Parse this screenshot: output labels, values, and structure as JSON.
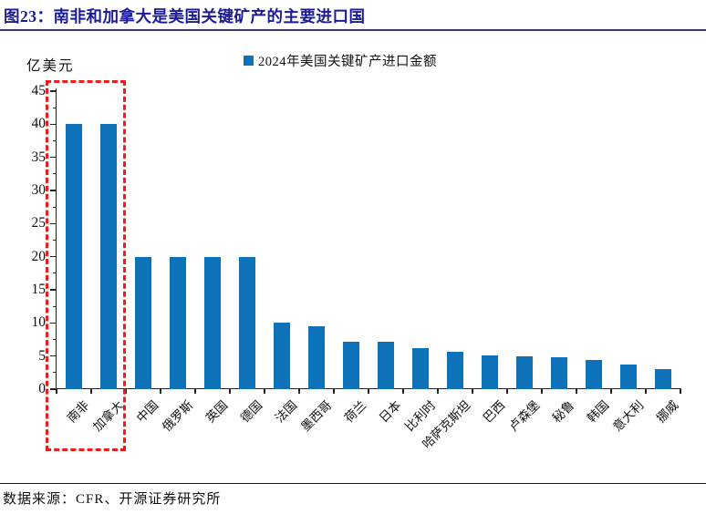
{
  "header": {
    "title": "图23：南非和加拿大是美国关键矿产的主要进口国",
    "title_color": "#1b1b96"
  },
  "chart_data": {
    "type": "bar",
    "legend": "2024年美国关键矿产进口金额",
    "ylabel": "亿美元",
    "categories": [
      "南非",
      "加拿大",
      "中国",
      "俄罗斯",
      "英国",
      "德国",
      "法国",
      "墨西哥",
      "荷兰",
      "日本",
      "比利时",
      "哈萨克斯坦",
      "巴西",
      "卢森堡",
      "秘鲁",
      "韩国",
      "意大利",
      "挪威"
    ],
    "values": [
      40,
      40,
      20,
      20,
      20,
      20,
      10,
      9.5,
      7.2,
      7.1,
      6.2,
      5.6,
      5.1,
      5.0,
      4.8,
      4.4,
      3.7,
      3.0
    ],
    "ylim": [
      0,
      45
    ],
    "yticks": [
      0,
      5,
      10,
      15,
      20,
      25,
      30,
      35,
      40,
      45
    ],
    "grid": false,
    "legend_position": "top-center",
    "colors": {
      "bar": "#0e72b9",
      "highlight_box": "#ee1c1c"
    },
    "annotation": {
      "shape": "dashed-box",
      "highlighted_categories": [
        "南非",
        "加拿大"
      ]
    }
  },
  "footer": {
    "source": "数据来源：CFR、开源证券研究所"
  }
}
